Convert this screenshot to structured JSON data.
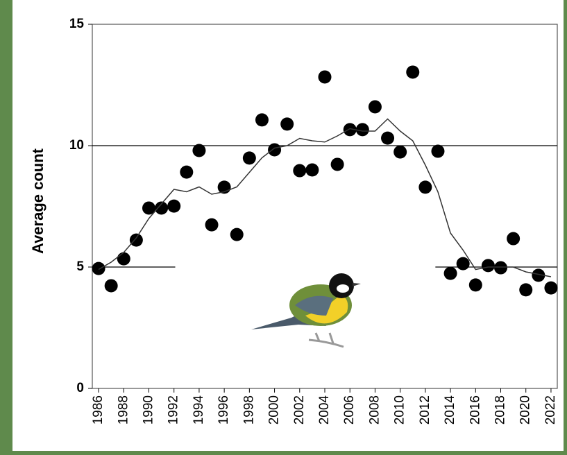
{
  "chart_data": {
    "type": "scatter",
    "y_label": "Average count",
    "x": [
      1986,
      1987,
      1988,
      1989,
      1990,
      1991,
      1992,
      1993,
      1994,
      1995,
      1996,
      1997,
      1998,
      1999,
      2000,
      2001,
      2002,
      2003,
      2004,
      2005,
      2006,
      2007,
      2008,
      2009,
      2010,
      2011,
      2012,
      2013,
      2014,
      2015,
      2016,
      2017,
      2018,
      2019,
      2020,
      2021,
      2022
    ],
    "series": [
      {
        "type": "scatter",
        "color": "#000000",
        "values": [
          4.94,
          4.23,
          5.34,
          6.11,
          7.43,
          7.43,
          7.51,
          8.91,
          9.8,
          6.74,
          8.29,
          6.34,
          9.49,
          11.06,
          9.83,
          10.89,
          8.97,
          9.0,
          12.83,
          9.23,
          10.66,
          10.66,
          11.6,
          10.31,
          9.74,
          13.03,
          8.29,
          9.77,
          4.74,
          5.14,
          4.26,
          5.06,
          4.97,
          6.17,
          4.06,
          4.66,
          4.14
        ]
      },
      {
        "type": "line",
        "color": "#333333",
        "values": [
          4.9,
          5.2,
          5.6,
          6.2,
          7.0,
          7.6,
          8.2,
          8.1,
          8.3,
          8.0,
          8.1,
          8.3,
          8.9,
          9.5,
          9.9,
          10.0,
          10.3,
          10.2,
          10.15,
          10.4,
          10.7,
          10.6,
          10.6,
          11.1,
          10.6,
          10.2,
          9.2,
          8.1,
          6.4,
          5.7,
          4.9,
          5.0,
          5.0,
          5.0,
          4.8,
          4.7,
          4.6
        ]
      }
    ],
    "reference_lines": [
      {
        "y": 10,
        "x": [
          1985.5,
          2022.5
        ]
      },
      {
        "y": 5,
        "x": [
          1985.5,
          1992.1
        ]
      },
      {
        "y": 5,
        "x": [
          2012.8,
          2022.5
        ]
      }
    ],
    "xlim": [
      1985.5,
      2022.5
    ],
    "ylim": [
      0,
      15
    ],
    "xticks": [
      1986,
      1988,
      1990,
      1992,
      1994,
      1996,
      1998,
      2000,
      2002,
      2004,
      2006,
      2008,
      2010,
      2012,
      2014,
      2016,
      2018,
      2020,
      2022
    ],
    "yticks": [
      0,
      5,
      10,
      15
    ]
  }
}
